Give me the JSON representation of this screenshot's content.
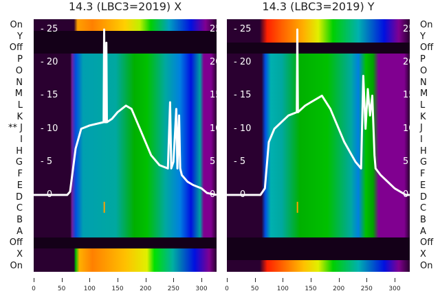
{
  "chart_data": [
    {
      "type": "heatmap",
      "title": "14.3 (LBC3=2019) X",
      "row_labels": [
        "On",
        "Y",
        "Off",
        "P",
        "O",
        "N",
        "M",
        "L",
        "K",
        "** J",
        "I",
        "H",
        "G",
        "F",
        "E",
        "D",
        "C",
        "B",
        "A",
        "Off",
        "X",
        "On"
      ],
      "xlim": [
        0,
        327
      ],
      "xticks": [
        "0",
        "50",
        "100",
        "150",
        "200",
        "250",
        "300"
      ],
      "yticks": [
        "25",
        "20",
        "15",
        "10",
        "5",
        "0"
      ],
      "ylim": [
        -0.6,
        26
      ],
      "line": {
        "color": "#ffffff",
        "x": [
          0,
          60,
          65,
          75,
          85,
          100,
          125,
          126,
          127,
          129,
          130,
          131,
          140,
          150,
          165,
          175,
          190,
          210,
          225,
          240,
          244,
          246,
          250,
          255,
          257,
          260,
          262,
          265,
          275,
          285,
          300,
          310,
          327
        ],
        "y": [
          0,
          0,
          0.5,
          7,
          10,
          10.5,
          11,
          25,
          11,
          11,
          23,
          11,
          11.5,
          12.5,
          13.5,
          13,
          10,
          6,
          4.5,
          4,
          14,
          4,
          5,
          13,
          4,
          12,
          4,
          3,
          2,
          1.5,
          1,
          0.3,
          0
        ]
      }
    },
    {
      "type": "heatmap",
      "title": "14.3 (LBC3=2019) Y",
      "row_labels": [
        "On",
        "Y",
        "Off",
        "P",
        "O",
        "N",
        "M",
        "L",
        "K",
        "J",
        "I",
        "H",
        "G",
        "F",
        "E",
        "D",
        "C",
        "B",
        "A",
        "Off",
        "X",
        "On"
      ],
      "xlim": [
        0,
        327
      ],
      "xticks": [
        "0",
        "50",
        "100",
        "150",
        "200",
        "250",
        "300"
      ],
      "yticks": [
        "25",
        "20",
        "15",
        "10",
        "5",
        "0"
      ],
      "ylim": [
        -0.6,
        26
      ],
      "line": {
        "color": "#ffffff",
        "x": [
          0,
          60,
          68,
          75,
          85,
          110,
          125,
          126,
          127,
          140,
          150,
          170,
          185,
          210,
          230,
          240,
          244,
          248,
          252,
          256,
          260,
          264,
          266,
          275,
          300,
          320,
          327
        ],
        "y": [
          0,
          0,
          1,
          8,
          10,
          12,
          12.5,
          25,
          12.5,
          13.5,
          14,
          15,
          13,
          8,
          5,
          4,
          18,
          10,
          16,
          12,
          15,
          6,
          4,
          3,
          1,
          0,
          0
        ]
      }
    }
  ],
  "colors": {
    "dark": "#2a0030",
    "teal": "#00a8a0",
    "green": "#00c000",
    "blue": "#0010e0",
    "purple": "#800090"
  }
}
